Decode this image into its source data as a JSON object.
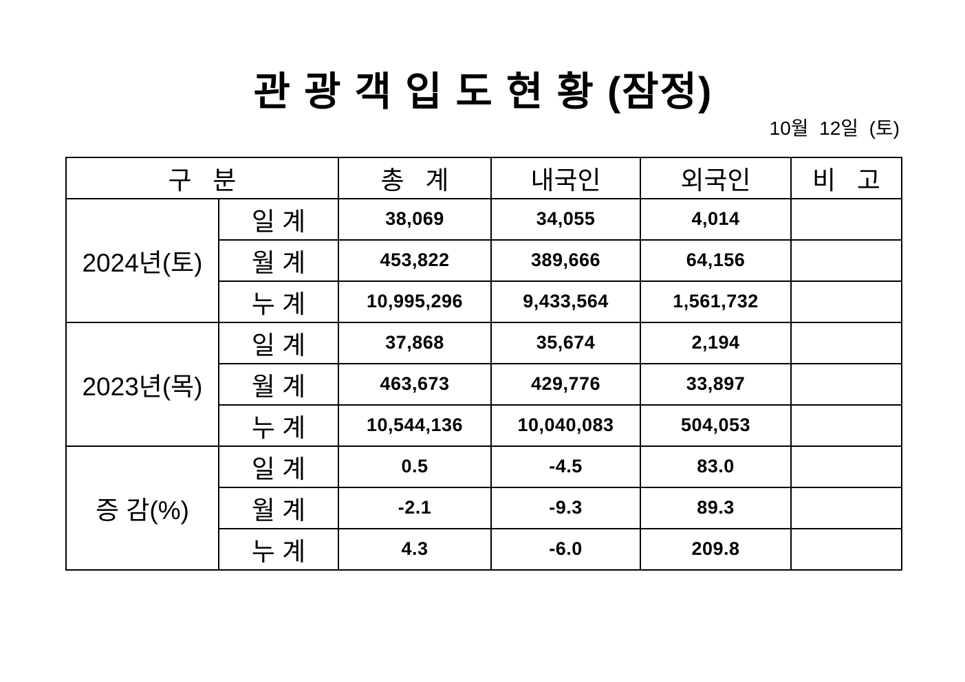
{
  "title": "관 광 객 입 도 현 황 (잠정)",
  "date_label": "10월  12일  (토)",
  "table": {
    "headers": {
      "category": "구   분",
      "total": "총   계",
      "domestic": "내국인",
      "foreign": "외국인",
      "remarks": "비   고"
    },
    "groups": [
      {
        "label": "2024년(토)",
        "rows": [
          {
            "label": "일 계",
            "total": "38,069",
            "domestic": "34,055",
            "foreign": "4,014",
            "remarks": ""
          },
          {
            "label": "월 계",
            "total": "453,822",
            "domestic": "389,666",
            "foreign": "64,156",
            "remarks": ""
          },
          {
            "label": "누 계",
            "total": "10,995,296",
            "domestic": "9,433,564",
            "foreign": "1,561,732",
            "remarks": ""
          }
        ]
      },
      {
        "label": "2023년(목)",
        "rows": [
          {
            "label": "일 계",
            "total": "37,868",
            "domestic": "35,674",
            "foreign": "2,194",
            "remarks": ""
          },
          {
            "label": "월 계",
            "total": "463,673",
            "domestic": "429,776",
            "foreign": "33,897",
            "remarks": ""
          },
          {
            "label": "누 계",
            "total": "10,544,136",
            "domestic": "10,040,083",
            "foreign": "504,053",
            "remarks": ""
          }
        ]
      },
      {
        "label": "증 감(%)",
        "rows": [
          {
            "label": "일 계",
            "total": "0.5",
            "domestic": "-4.5",
            "foreign": "83.0",
            "remarks": ""
          },
          {
            "label": "월 계",
            "total": "-2.1",
            "domestic": "-9.3",
            "foreign": "89.3",
            "remarks": ""
          },
          {
            "label": "누 계",
            "total": "4.3",
            "domestic": "-6.0",
            "foreign": "209.8",
            "remarks": ""
          }
        ]
      }
    ]
  }
}
